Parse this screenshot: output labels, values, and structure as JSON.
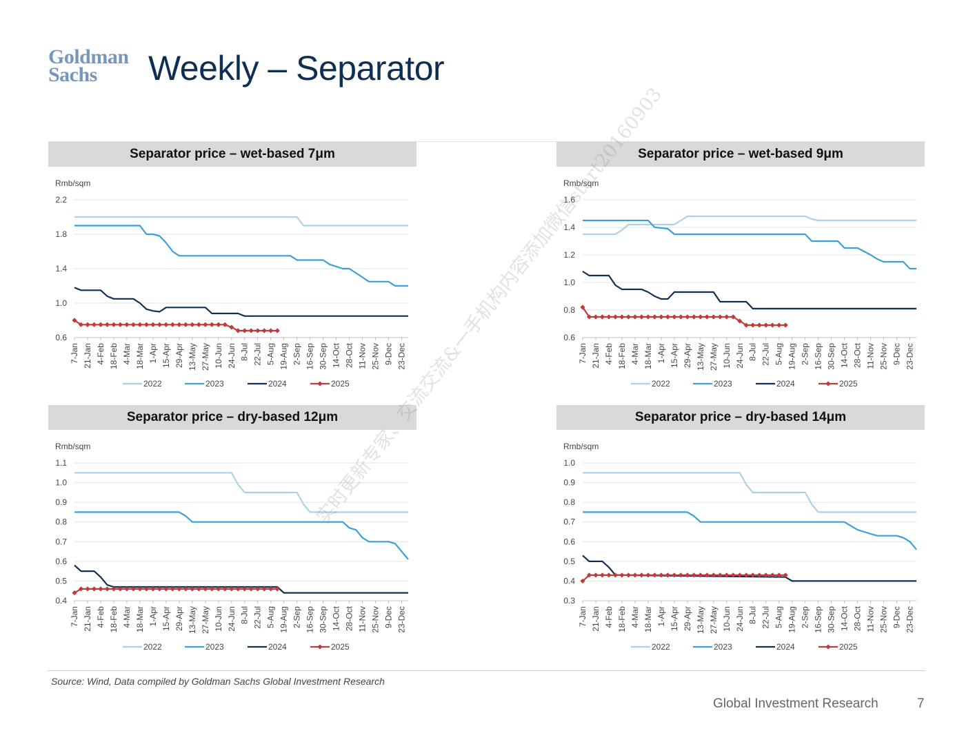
{
  "logo": {
    "line1": "Goldman",
    "line2": "Sachs"
  },
  "title": "Weekly – Separator",
  "watermark": "实时更新专家、交流交流&一手机构内容添加微信start20160903",
  "source": "Source: Wind, Data compiled by Goldman Sachs Global Investment Research",
  "footer": {
    "brand": "Global Investment Research",
    "page": "7"
  },
  "colors": {
    "2022": "#a8d3ea",
    "2023": "#3aa0db",
    "2024": "#0f2f52",
    "2025": "#c0393b"
  },
  "chart_data": [
    {
      "type": "line",
      "title": "Separator price – wet-based 7μm",
      "ylabel": "Rmb/sqm",
      "ylim": [
        0.6,
        2.2
      ],
      "yticks": [
        "0.6",
        "1.0",
        "1.4",
        "1.8",
        "2.2"
      ],
      "categories": [
        "7-Jan",
        "21-Jan",
        "4-Feb",
        "18-Feb",
        "4-Mar",
        "18-Mar",
        "1-Apr",
        "15-Apr",
        "29-Apr",
        "13-May",
        "27-May",
        "10-Jun",
        "24-Jun",
        "8-Jul",
        "22-Jul",
        "5-Aug",
        "19-Aug",
        "2-Sep",
        "16-Sep",
        "30-Sep",
        "14-Oct",
        "28-Oct",
        "11-Nov",
        "25-Nov",
        "9-Dec",
        "23-Dec"
      ],
      "series": [
        {
          "name": "2022",
          "x": [
            0,
            34,
            35,
            51
          ],
          "y": [
            2.0,
            2.0,
            1.9,
            1.9
          ]
        },
        {
          "name": "2023",
          "x": [
            0,
            10,
            11,
            12,
            13,
            14,
            15,
            16,
            33,
            34,
            38,
            39,
            41,
            42,
            44,
            45,
            48,
            49,
            51
          ],
          "y": [
            1.9,
            1.9,
            1.8,
            1.8,
            1.78,
            1.7,
            1.6,
            1.55,
            1.55,
            1.5,
            1.5,
            1.45,
            1.4,
            1.4,
            1.3,
            1.25,
            1.25,
            1.2,
            1.2
          ]
        },
        {
          "name": "2024",
          "x": [
            0,
            1,
            4,
            5,
            6,
            9,
            10,
            11,
            12,
            13,
            14,
            20,
            21,
            25,
            26,
            51
          ],
          "y": [
            1.18,
            1.15,
            1.15,
            1.08,
            1.05,
            1.05,
            1.0,
            0.93,
            0.91,
            0.9,
            0.95,
            0.95,
            0.88,
            0.88,
            0.85,
            0.85
          ]
        },
        {
          "name": "2025",
          "x": [
            0,
            1,
            2,
            3,
            4,
            5,
            6,
            7,
            8,
            9,
            10,
            11,
            12,
            13,
            14,
            15,
            16,
            17,
            18,
            19,
            20,
            21,
            22,
            23,
            24,
            25,
            26,
            27,
            28,
            29,
            30,
            31
          ],
          "y": [
            0.8,
            0.75,
            0.75,
            0.75,
            0.75,
            0.75,
            0.75,
            0.75,
            0.75,
            0.75,
            0.75,
            0.75,
            0.75,
            0.75,
            0.75,
            0.75,
            0.75,
            0.75,
            0.75,
            0.75,
            0.75,
            0.75,
            0.75,
            0.75,
            0.72,
            0.68,
            0.68,
            0.68,
            0.68,
            0.68,
            0.68,
            0.68
          ]
        }
      ]
    },
    {
      "type": "line",
      "title": "Separator price – wet-based 9μm",
      "ylabel": "Rmb/sqm",
      "ylim": [
        0.6,
        1.6
      ],
      "yticks": [
        "0.6",
        "0.8",
        "1.0",
        "1.2",
        "1.4",
        "1.6"
      ],
      "categories": [
        "7-Jan",
        "21-Jan",
        "4-Feb",
        "18-Feb",
        "4-Mar",
        "18-Mar",
        "1-Apr",
        "15-Apr",
        "29-Apr",
        "13-May",
        "27-May",
        "10-Jun",
        "24-Jun",
        "8-Jul",
        "22-Jul",
        "5-Aug",
        "19-Aug",
        "2-Sep",
        "16-Sep",
        "30-Sep",
        "14-Oct",
        "28-Oct",
        "11-Nov",
        "25-Nov",
        "9-Dec",
        "23-Dec"
      ],
      "series": [
        {
          "name": "2022",
          "x": [
            0,
            5,
            6,
            7,
            14,
            15,
            16,
            34,
            35,
            36,
            51
          ],
          "y": [
            1.35,
            1.35,
            1.38,
            1.42,
            1.42,
            1.45,
            1.48,
            1.48,
            1.46,
            1.45,
            1.45
          ]
        },
        {
          "name": "2023",
          "x": [
            0,
            10,
            11,
            13,
            14,
            34,
            35,
            39,
            40,
            42,
            44,
            45,
            46,
            49,
            50,
            51
          ],
          "y": [
            1.45,
            1.45,
            1.4,
            1.39,
            1.35,
            1.35,
            1.3,
            1.3,
            1.25,
            1.25,
            1.2,
            1.17,
            1.15,
            1.15,
            1.1,
            1.1
          ]
        },
        {
          "name": "2024",
          "x": [
            0,
            1,
            4,
            5,
            6,
            9,
            10,
            11,
            12,
            13,
            14,
            20,
            21,
            25,
            26,
            51
          ],
          "y": [
            1.08,
            1.05,
            1.05,
            0.98,
            0.95,
            0.95,
            0.93,
            0.9,
            0.88,
            0.88,
            0.93,
            0.93,
            0.86,
            0.86,
            0.81,
            0.81
          ]
        },
        {
          "name": "2025",
          "x": [
            0,
            1,
            2,
            3,
            4,
            5,
            6,
            7,
            8,
            9,
            10,
            11,
            12,
            13,
            14,
            15,
            16,
            17,
            18,
            19,
            20,
            21,
            22,
            23,
            24,
            25,
            26,
            27,
            28,
            29,
            30,
            31
          ],
          "y": [
            0.82,
            0.75,
            0.75,
            0.75,
            0.75,
            0.75,
            0.75,
            0.75,
            0.75,
            0.75,
            0.75,
            0.75,
            0.75,
            0.75,
            0.75,
            0.75,
            0.75,
            0.75,
            0.75,
            0.75,
            0.75,
            0.75,
            0.75,
            0.75,
            0.72,
            0.69,
            0.69,
            0.69,
            0.69,
            0.69,
            0.69,
            0.69
          ]
        }
      ]
    },
    {
      "type": "line",
      "title": "Separator price – dry-based 12μm",
      "ylabel": "Rmb/sqm",
      "ylim": [
        0.4,
        1.1
      ],
      "yticks": [
        "0.4",
        "0.5",
        "0.6",
        "0.7",
        "0.8",
        "0.9",
        "1.0",
        "1.1"
      ],
      "categories": [
        "7-Jan",
        "21-Jan",
        "4-Feb",
        "18-Feb",
        "4-Mar",
        "18-Mar",
        "1-Apr",
        "15-Apr",
        "29-Apr",
        "13-May",
        "27-May",
        "10-Jun",
        "24-Jun",
        "8-Jul",
        "22-Jul",
        "5-Aug",
        "19-Aug",
        "2-Sep",
        "16-Sep",
        "30-Sep",
        "14-Oct",
        "28-Oct",
        "11-Nov",
        "25-Nov",
        "9-Dec",
        "23-Dec"
      ],
      "series": [
        {
          "name": "2022",
          "x": [
            0,
            24,
            25,
            26,
            34,
            35,
            36,
            51
          ],
          "y": [
            1.05,
            1.05,
            0.99,
            0.95,
            0.95,
            0.89,
            0.85,
            0.85
          ]
        },
        {
          "name": "2023",
          "x": [
            0,
            16,
            17,
            18,
            41,
            42,
            43,
            44,
            45,
            48,
            49,
            51
          ],
          "y": [
            0.85,
            0.85,
            0.83,
            0.8,
            0.8,
            0.77,
            0.76,
            0.72,
            0.7,
            0.7,
            0.69,
            0.61
          ]
        },
        {
          "name": "2024",
          "x": [
            0,
            1,
            3,
            4,
            5,
            6,
            30,
            31,
            32,
            51
          ],
          "y": [
            0.58,
            0.55,
            0.55,
            0.52,
            0.48,
            0.47,
            0.47,
            0.47,
            0.44,
            0.44
          ]
        },
        {
          "name": "2025",
          "x": [
            0,
            1,
            2,
            3,
            4,
            5,
            6,
            7,
            8,
            9,
            10,
            11,
            12,
            13,
            14,
            15,
            16,
            17,
            18,
            19,
            20,
            21,
            22,
            23,
            24,
            25,
            26,
            27,
            28,
            29,
            30,
            31
          ],
          "y": [
            0.44,
            0.46,
            0.46,
            0.46,
            0.46,
            0.46,
            0.46,
            0.46,
            0.46,
            0.46,
            0.46,
            0.46,
            0.46,
            0.46,
            0.46,
            0.46,
            0.46,
            0.46,
            0.46,
            0.46,
            0.46,
            0.46,
            0.46,
            0.46,
            0.46,
            0.46,
            0.46,
            0.46,
            0.46,
            0.46,
            0.46,
            0.46
          ]
        }
      ]
    },
    {
      "type": "line",
      "title": "Separator price – dry-based 14μm",
      "ylabel": "Rmb/sqm",
      "ylim": [
        0.3,
        1.0
      ],
      "yticks": [
        "0.3",
        "0.4",
        "0.5",
        "0.6",
        "0.7",
        "0.8",
        "0.9",
        "1.0"
      ],
      "categories": [
        "7-Jan",
        "21-Jan",
        "4-Feb",
        "18-Feb",
        "4-Mar",
        "18-Mar",
        "1-Apr",
        "15-Apr",
        "29-Apr",
        "13-May",
        "27-May",
        "10-Jun",
        "24-Jun",
        "8-Jul",
        "22-Jul",
        "5-Aug",
        "19-Aug",
        "2-Sep",
        "16-Sep",
        "30-Sep",
        "14-Oct",
        "28-Oct",
        "11-Nov",
        "25-Nov",
        "9-Dec",
        "23-Dec"
      ],
      "series": [
        {
          "name": "2022",
          "x": [
            0,
            24,
            25,
            26,
            34,
            35,
            36,
            51
          ],
          "y": [
            0.95,
            0.95,
            0.89,
            0.85,
            0.85,
            0.79,
            0.75,
            0.75
          ]
        },
        {
          "name": "2023",
          "x": [
            0,
            16,
            17,
            18,
            40,
            41,
            42,
            43,
            44,
            45,
            48,
            49,
            50,
            51
          ],
          "y": [
            0.75,
            0.75,
            0.73,
            0.7,
            0.7,
            0.68,
            0.66,
            0.65,
            0.64,
            0.63,
            0.63,
            0.62,
            0.6,
            0.56
          ]
        },
        {
          "name": "2024",
          "x": [
            0,
            1,
            3,
            4,
            5,
            6,
            31,
            32,
            51
          ],
          "y": [
            0.53,
            0.5,
            0.5,
            0.47,
            0.43,
            0.43,
            0.42,
            0.4,
            0.4
          ]
        },
        {
          "name": "2025",
          "x": [
            0,
            1,
            2,
            3,
            4,
            5,
            6,
            7,
            8,
            9,
            10,
            11,
            12,
            13,
            14,
            15,
            16,
            17,
            18,
            19,
            20,
            21,
            22,
            23,
            24,
            25,
            26,
            27,
            28,
            29,
            30,
            31
          ],
          "y": [
            0.4,
            0.43,
            0.43,
            0.43,
            0.43,
            0.43,
            0.43,
            0.43,
            0.43,
            0.43,
            0.43,
            0.43,
            0.43,
            0.43,
            0.43,
            0.43,
            0.43,
            0.43,
            0.43,
            0.43,
            0.43,
            0.43,
            0.43,
            0.43,
            0.43,
            0.43,
            0.43,
            0.43,
            0.43,
            0.43,
            0.43,
            0.43
          ]
        }
      ]
    }
  ]
}
